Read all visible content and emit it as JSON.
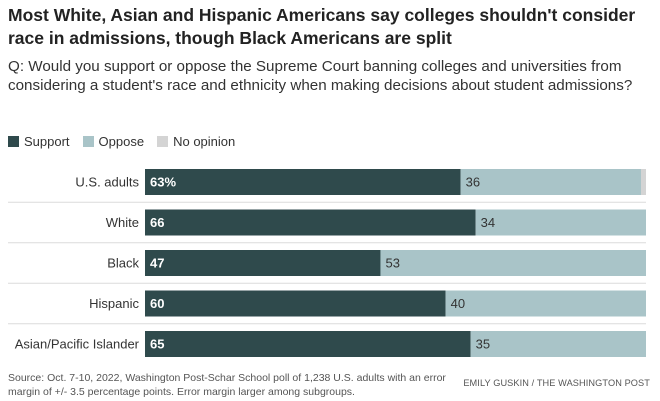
{
  "title": "Most White, Asian and Hispanic Americans say colleges shouldn't consider race in admissions, though Black Americans are split",
  "subtitle": "Q: Would you support or oppose the Supreme Court banning colleges and universities from considering a student's race and ethnicity when making decisions about student admissions?",
  "source": "Source: Oct. 7-10, 2022, Washington Post-Schar School poll of 1,238 U.S. adults with an error margin of +/- 3.5 percentage points. Error margin larger among subgroups.",
  "credit": "EMILY GUSKIN / THE WASHINGTON POST",
  "colors": {
    "support": "#2f4a4c",
    "oppose": "#a9c4c8",
    "no_opinion": "#d4d4d4"
  },
  "chart_data": {
    "type": "bar",
    "orientation": "horizontal",
    "stacked": true,
    "categories": [
      "U.S. adults",
      "White",
      "Black",
      "Hispanic",
      "Asian/Pacific Islander"
    ],
    "series": [
      {
        "name": "Support",
        "values": [
          63,
          66,
          47,
          60,
          65
        ]
      },
      {
        "name": "Oppose",
        "values": [
          36,
          34,
          53,
          40,
          35
        ]
      },
      {
        "name": "No opinion",
        "values": [
          1,
          0,
          0,
          0,
          0
        ]
      }
    ],
    "data_labels": {
      "Support": [
        "63%",
        "66",
        "47",
        "60",
        "65"
      ],
      "Oppose": [
        "36",
        "34",
        "53",
        "40",
        "35"
      ]
    },
    "xlim": [
      0,
      100
    ],
    "legend_position": "top-left",
    "grid": false
  }
}
